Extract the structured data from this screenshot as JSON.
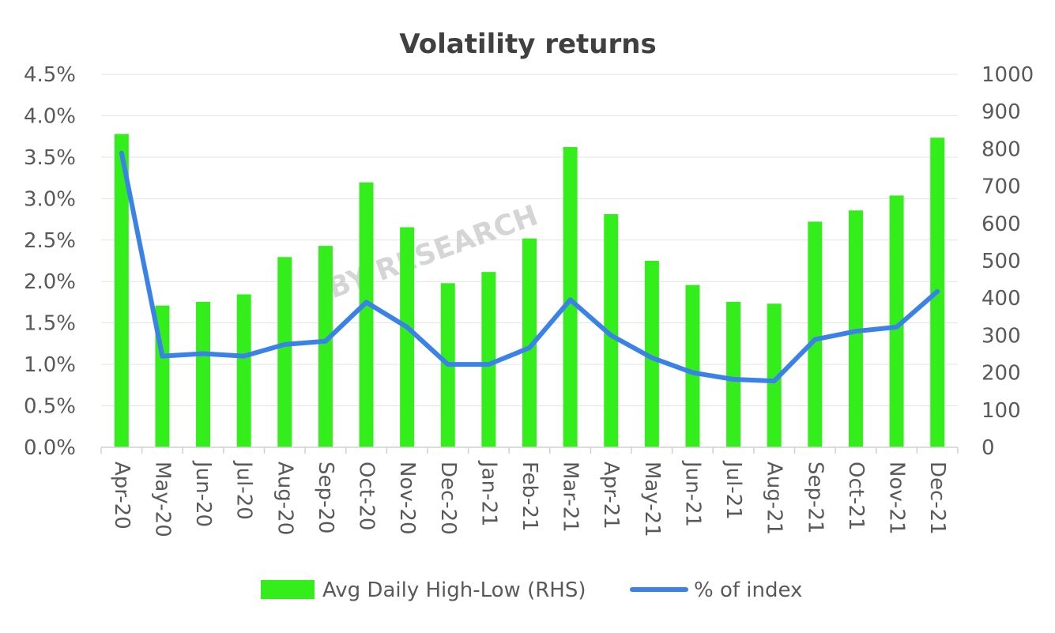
{
  "watermark": "BY RESEARCH",
  "chart_data": {
    "type": "bar",
    "title": "Volatility returns",
    "categories": [
      "Apr-20",
      "May-20",
      "Jun-20",
      "Jul-20",
      "Aug-20",
      "Sep-20",
      "Oct-20",
      "Nov-20",
      "Dec-20",
      "Jan-21",
      "Feb-21",
      "Mar-21",
      "Apr-21",
      "May-21",
      "Jun-21",
      "Jul-21",
      "Aug-21",
      "Sep-21",
      "Oct-21",
      "Nov-21",
      "Dec-21"
    ],
    "y_left": {
      "min": 0,
      "max": 4.5,
      "ticks": [
        "0.0%",
        "0.5%",
        "1.0%",
        "1.5%",
        "2.0%",
        "2.5%",
        "3.0%",
        "3.5%",
        "4.0%",
        "4.5%"
      ],
      "tick_values": [
        0,
        0.5,
        1.0,
        1.5,
        2.0,
        2.5,
        3.0,
        3.5,
        4.0,
        4.5
      ]
    },
    "y_right": {
      "min": 0,
      "max": 1000,
      "ticks": [
        "0",
        "100",
        "200",
        "300",
        "400",
        "500",
        "600",
        "700",
        "800",
        "900",
        "1000"
      ],
      "tick_values": [
        0,
        100,
        200,
        300,
        400,
        500,
        600,
        700,
        800,
        900,
        1000
      ]
    },
    "series": [
      {
        "name": "Avg Daily High-Low (RHS)",
        "type": "bar",
        "axis": "right",
        "color": "#33ee1a",
        "values": [
          840,
          380,
          390,
          410,
          510,
          540,
          710,
          590,
          440,
          470,
          560,
          805,
          625,
          500,
          435,
          390,
          385,
          605,
          635,
          675,
          830
        ]
      },
      {
        "name": "% of index",
        "type": "line",
        "axis": "left",
        "color": "#3b82e8",
        "values": [
          3.55,
          1.1,
          1.13,
          1.1,
          1.24,
          1.28,
          1.75,
          1.45,
          1.0,
          1.0,
          1.2,
          1.78,
          1.35,
          1.08,
          0.9,
          0.82,
          0.8,
          1.3,
          1.4,
          1.45,
          1.88
        ]
      }
    ],
    "legend_position": "bottom",
    "grid": true
  }
}
